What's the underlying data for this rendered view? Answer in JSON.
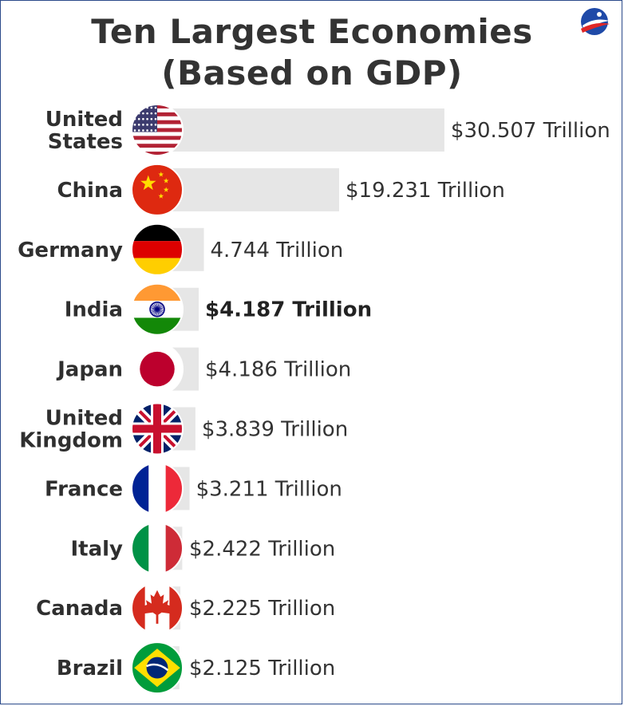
{
  "header": {
    "title_line1": "Ten Largest Economies",
    "title_line2": "(Based on GDP)"
  },
  "chart_data": {
    "type": "bar",
    "orientation": "horizontal",
    "title": "Ten Largest Economies (Based on GDP)",
    "bar_color": "#e6e6e6",
    "categories": [
      {
        "lines": [
          "United",
          "States"
        ],
        "flag": "us-flag-icon"
      },
      {
        "lines": [
          "China"
        ],
        "flag": "china-flag-icon"
      },
      {
        "lines": [
          "Germany"
        ],
        "flag": "germany-flag-icon"
      },
      {
        "lines": [
          "India"
        ],
        "flag": "india-flag-icon"
      },
      {
        "lines": [
          "Japan"
        ],
        "flag": "japan-flag-icon"
      },
      {
        "lines": [
          "United",
          "Kingdom"
        ],
        "flag": "uk-flag-icon"
      },
      {
        "lines": [
          "France"
        ],
        "flag": "france-flag-icon"
      },
      {
        "lines": [
          "Italy"
        ],
        "flag": "italy-flag-icon"
      },
      {
        "lines": [
          "Canada"
        ],
        "flag": "canada-flag-icon"
      },
      {
        "lines": [
          "Brazil"
        ],
        "flag": "brazil-flag-icon"
      }
    ],
    "values": [
      30.507,
      19.231,
      4.744,
      4.187,
      4.186,
      3.839,
      3.211,
      2.422,
      2.225,
      2.125
    ],
    "value_labels": [
      "$30.507 Trillion",
      "$19.231 Trillion",
      "4.744 Trillion",
      "$4.187 Trillion",
      "$4.186 Trillion",
      "$3.839 Trillion",
      "$3.211 Trillion",
      "$2.422 Trillion",
      "$2.225 Trillion",
      "$2.125 Trillion"
    ],
    "highlight": "India",
    "unit": "Trillion USD"
  },
  "logo": {
    "name": "brand-logo",
    "colors": [
      "#1f4aa8",
      "#e02626"
    ]
  }
}
